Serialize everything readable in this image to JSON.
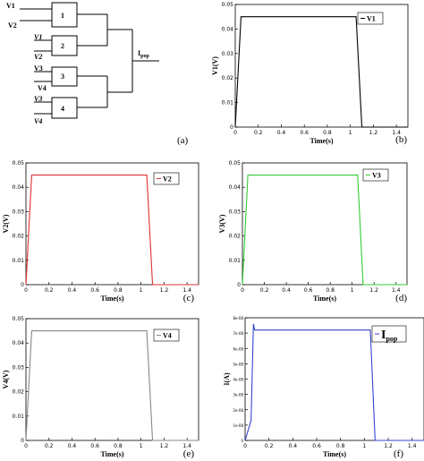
{
  "diagram": {
    "inputs": [
      "V1",
      "V2",
      "V1",
      "V2",
      "V3",
      "V4",
      "V3",
      "V4"
    ],
    "blocks": [
      "1",
      "2",
      "3",
      "4"
    ],
    "output": "I",
    "output_sub": "pop",
    "panel": "(a)"
  },
  "chart_data": [
    {
      "type": "line",
      "panel": "(b)",
      "xlabel": "Time(s)",
      "ylabel": "V1(V)",
      "color": "#000000",
      "legend": {
        "label": "V1",
        "sub": "",
        "placement": "top-right"
      },
      "x": [
        0,
        0.05,
        1.05,
        1.1,
        1.5
      ],
      "y": [
        0,
        0.045,
        0.045,
        0,
        0
      ],
      "xlim": [
        0,
        1.5
      ],
      "ylim": [
        0,
        0.05
      ],
      "xticks": [
        0,
        0.2,
        0.4,
        0.6,
        0.8,
        1,
        1.2,
        1.4
      ],
      "xtick_labels": [
        "0",
        "0.2",
        "0.4",
        "0.6",
        "0.8",
        "1",
        "1.2",
        "1.4"
      ],
      "yticks": [
        0,
        0.01,
        0.02,
        0.03,
        0.04,
        0.05
      ],
      "ytick_labels": [
        "0",
        "0.01",
        "0.02",
        "0.03",
        "0.04",
        "0.05"
      ],
      "grid": false
    },
    {
      "type": "line",
      "panel": "(c)",
      "xlabel": "Time(s)",
      "ylabel": "V2(V)",
      "color": "#e03030",
      "legend": {
        "label": "V2",
        "sub": "",
        "placement": "top-right"
      },
      "x": [
        0,
        0.05,
        1.05,
        1.1,
        1.5
      ],
      "y": [
        0,
        0.045,
        0.045,
        0,
        0
      ],
      "xlim": [
        0,
        1.5
      ],
      "ylim": [
        0,
        0.05
      ],
      "xticks": [
        0,
        0.2,
        0.4,
        0.6,
        0.8,
        1,
        1.2,
        1.4
      ],
      "xtick_labels": [
        "0",
        "0.2",
        "0.4",
        "0.6",
        "0.8",
        "1",
        "1.2",
        "1.4"
      ],
      "yticks": [
        0,
        0.01,
        0.02,
        0.03,
        0.04,
        0.05
      ],
      "ytick_labels": [
        "0",
        "0.01",
        "0.02",
        "0.03",
        "0.04",
        "0.05"
      ],
      "grid": false
    },
    {
      "type": "line",
      "panel": "(d)",
      "xlabel": "Time(s)",
      "ylabel": "V3(V)",
      "color": "#33cc33",
      "legend": {
        "label": "V3",
        "sub": "",
        "placement": "top-right"
      },
      "x": [
        0,
        0.05,
        1.05,
        1.1,
        1.5
      ],
      "y": [
        0,
        0.045,
        0.045,
        0,
        0
      ],
      "xlim": [
        0,
        1.5
      ],
      "ylim": [
        0,
        0.05
      ],
      "xticks": [
        0,
        0.2,
        0.4,
        0.6,
        0.8,
        1,
        1.2,
        1.4
      ],
      "xtick_labels": [
        "0",
        "0.2",
        "0.4",
        "0.6",
        "0.8",
        "1",
        "1.2",
        "1.4"
      ],
      "yticks": [
        0,
        0.01,
        0.02,
        0.03,
        0.04,
        0.05
      ],
      "ytick_labels": [
        "0",
        "0.01",
        "0.02",
        "0.03",
        "0.04",
        "0.05"
      ],
      "grid": false
    },
    {
      "type": "line",
      "panel": "(e)",
      "xlabel": "Time(s)",
      "ylabel": "V4(V)",
      "color": "#888888",
      "legend": {
        "label": "V4",
        "sub": "",
        "placement": "top-right"
      },
      "x": [
        0,
        0.05,
        1.05,
        1.1,
        1.5
      ],
      "y": [
        0,
        0.045,
        0.045,
        0,
        0
      ],
      "xlim": [
        0,
        1.5
      ],
      "ylim": [
        0,
        0.05
      ],
      "xticks": [
        0,
        0.2,
        0.4,
        0.6,
        0.8,
        1,
        1.2,
        1.4
      ],
      "xtick_labels": [
        "0",
        "0.2",
        "0.4",
        "0.6",
        "0.8",
        "1",
        "1.2",
        "1.4"
      ],
      "yticks": [
        0,
        0.01,
        0.02,
        0.03,
        0.04,
        0.05
      ],
      "ytick_labels": [
        "0",
        "0.01",
        "0.02",
        "0.03",
        "0.04",
        "0.05"
      ],
      "grid": false
    },
    {
      "type": "line",
      "panel": "(f)",
      "xlabel": "Time(s)",
      "ylabel": "I(A)",
      "color": "#3344cc",
      "legend": {
        "label": "I",
        "sub": "pop",
        "placement": "top-right"
      },
      "x": [
        0,
        0.05,
        0.07,
        0.08,
        1.05,
        1.09,
        1.5
      ],
      "y": [
        0,
        1.3e-08,
        7.6e-08,
        7.2e-08,
        7.2e-08,
        0,
        0
      ],
      "xlim": [
        0,
        1.5
      ],
      "ylim": [
        0,
        8e-08
      ],
      "xticks": [
        0,
        0.2,
        0.4,
        0.6,
        0.8,
        1,
        1.2,
        1.4
      ],
      "xtick_labels": [
        "0",
        "0.2",
        "0.4",
        "0.6",
        "0.8",
        "1",
        "1.2",
        "1.4"
      ],
      "yticks": [
        0,
        1e-08,
        2e-08,
        3e-08,
        4e-08,
        5e-08,
        6e-08,
        7e-08,
        8e-08
      ],
      "ytick_labels": [
        "0",
        "1e-08",
        "2e-08",
        "3e-08",
        "4e-08",
        "5e-08",
        "6e-08",
        "7e-08",
        "8e-08"
      ],
      "grid": false
    }
  ]
}
